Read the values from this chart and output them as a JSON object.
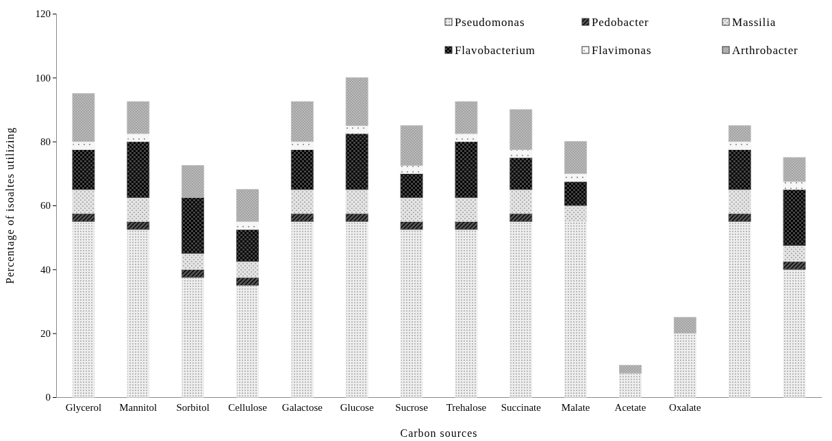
{
  "chart_data": {
    "type": "bar",
    "stacked": true,
    "xlabel": "Carbon sources",
    "ylabel": "Percentage of isoaltes utilizing",
    "categories": [
      "Glycerol",
      "Mannitol",
      "Sorbitol",
      "Cellulose",
      "Galactose",
      "Glucose",
      "Sucrose",
      "Trehalose",
      "Succinate",
      "Malate",
      "Acetate",
      "Oxalate",
      null,
      null
    ],
    "ylim": [
      0,
      120
    ],
    "yticks": [
      0,
      20,
      40,
      60,
      80,
      100,
      120
    ],
    "grid": false,
    "legend": "top right",
    "series": [
      {
        "name": "Pseudomonas",
        "color": "#eeeeee",
        "values": [
          55,
          52.5,
          37.5,
          35,
          55,
          55,
          52.5,
          52.5,
          55,
          55,
          7.5,
          20,
          55,
          40
        ]
      },
      {
        "name": "Pedobacter",
        "color": "#555555",
        "values": [
          2.5,
          2.5,
          2.5,
          2.5,
          2.5,
          2.5,
          2.5,
          2.5,
          2.5,
          0,
          0,
          0,
          2.5,
          2.5
        ]
      },
      {
        "name": "Massilia",
        "color": "#e4e4e4",
        "values": [
          7.5,
          7.5,
          5,
          5,
          7.5,
          7.5,
          7.5,
          7.5,
          7.5,
          5,
          0,
          0,
          7.5,
          5
        ]
      },
      {
        "name": "Flavobacterium",
        "color": "#444444",
        "values": [
          12.5,
          17.5,
          17.5,
          10,
          12.5,
          17.5,
          7.5,
          17.5,
          10,
          7.5,
          0,
          0,
          12.5,
          17.5
        ]
      },
      {
        "name": "Flavimonas",
        "color": "#f6f6f6",
        "values": [
          2.5,
          2.5,
          0,
          2.5,
          2.5,
          2.5,
          2.5,
          2.5,
          2.5,
          2.5,
          0,
          0,
          2.5,
          2.5
        ]
      },
      {
        "name": "Arthrobacter",
        "color": "#bbbbbb",
        "values": [
          15,
          10,
          10,
          10,
          12.5,
          15,
          12.5,
          10,
          12.5,
          10,
          2.5,
          5,
          5,
          7.5
        ]
      }
    ]
  }
}
